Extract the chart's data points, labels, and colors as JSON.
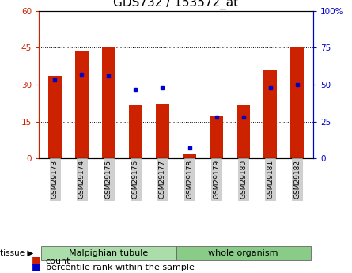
{
  "title": "GDS732 / 153572_at",
  "categories": [
    "GSM29173",
    "GSM29174",
    "GSM29175",
    "GSM29176",
    "GSM29177",
    "GSM29178",
    "GSM29179",
    "GSM29180",
    "GSM29181",
    "GSM29182"
  ],
  "counts": [
    33.5,
    43.5,
    45.0,
    21.5,
    22.0,
    2.0,
    17.5,
    21.5,
    36.0,
    45.5
  ],
  "percentiles": [
    53,
    57,
    56,
    47,
    48,
    7,
    28,
    28,
    48,
    50
  ],
  "left_ylim": [
    0,
    60
  ],
  "right_ylim": [
    0,
    100
  ],
  "left_yticks": [
    0,
    15,
    30,
    45,
    60
  ],
  "right_yticks": [
    0,
    25,
    50,
    75,
    100
  ],
  "right_yticklabels": [
    "0",
    "25",
    "50",
    "75",
    "100%"
  ],
  "bar_color": "#cc2200",
  "dot_color": "#0000cc",
  "grid_color": "#000000",
  "tissue_group1_label": "Malpighian tubule",
  "tissue_group2_label": "whole organism",
  "tissue_group1_color": "#aaddaa",
  "tissue_group2_color": "#88cc88",
  "tissue_label": "tissue",
  "legend_count_label": "count",
  "legend_pct_label": "percentile rank within the sample",
  "bar_width": 0.5,
  "left_tick_color": "#cc2200",
  "right_tick_color": "#0000cc",
  "tick_fontsize": 7.5,
  "title_fontsize": 11,
  "legend_fontsize": 8,
  "tissue_fontsize": 8,
  "xtick_fontsize": 6.5,
  "gridline_ticks": [
    15,
    30,
    45
  ],
  "n_categories": 10,
  "group1_indices": [
    0,
    4
  ],
  "group2_indices": [
    5,
    9
  ]
}
